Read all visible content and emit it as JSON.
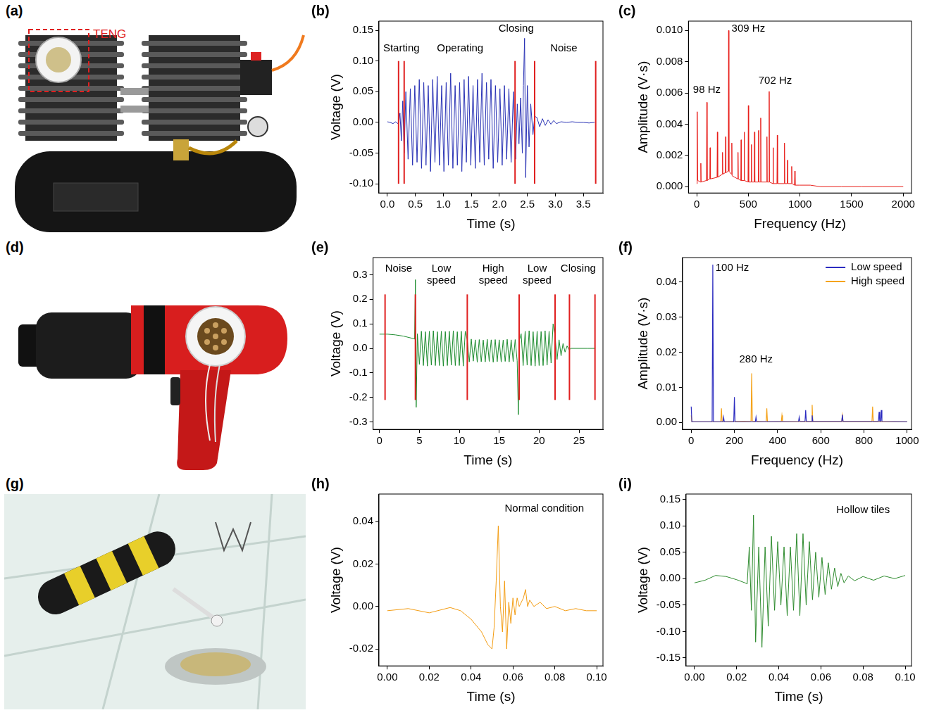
{
  "images": [
    {
      "label": "(a)",
      "annotation": "TENG"
    },
    {
      "label": "(d)"
    },
    {
      "label": "(g)"
    }
  ],
  "chart_data": [
    {
      "label": "(b)",
      "type": "line",
      "x_label": "Time (s)",
      "y_label": "Voltage (V)",
      "color": "#2a33b5",
      "grid": false,
      "xlim": [
        -0.15,
        3.85
      ],
      "xticks": [
        {
          "value": 0,
          "label": "0.0"
        },
        0.5,
        {
          "value": 1,
          "label": "1.0"
        },
        1.5,
        {
          "value": 2,
          "label": "2.0"
        },
        2.5,
        {
          "value": 3,
          "label": "3.0"
        },
        3.5
      ],
      "ylim": [
        -0.115,
        0.165
      ],
      "yticks": [
        {
          "value": -0.1,
          "label": "-0.10"
        },
        -0.05,
        {
          "value": 0,
          "label": "0.00"
        },
        0.05,
        {
          "value": 0.1,
          "label": "0.10"
        },
        0.15
      ],
      "x": [
        0,
        0.05,
        0.1,
        0.15,
        0.2,
        0.225,
        0.25,
        0.275,
        0.3,
        0.33,
        0.37,
        0.41,
        0.45,
        0.49,
        0.53,
        0.57,
        0.61,
        0.65,
        0.69,
        0.73,
        0.77,
        0.81,
        0.85,
        0.89,
        0.93,
        0.97,
        1.01,
        1.05,
        1.09,
        1.13,
        1.17,
        1.21,
        1.25,
        1.29,
        1.33,
        1.37,
        1.41,
        1.45,
        1.49,
        1.53,
        1.57,
        1.61,
        1.65,
        1.69,
        1.73,
        1.77,
        1.81,
        1.85,
        1.89,
        1.93,
        1.97,
        2.01,
        2.05,
        2.09,
        2.13,
        2.17,
        2.21,
        2.25,
        2.29,
        2.32,
        2.35,
        2.38,
        2.41,
        2.43,
        2.45,
        2.47,
        2.5,
        2.53,
        2.56,
        2.6,
        2.63,
        2.67,
        2.72,
        2.77,
        2.82,
        2.87,
        2.92,
        2.97,
        3.02,
        3.1,
        3.2,
        3.3,
        3.4,
        3.5,
        3.6,
        3.7
      ],
      "values": [
        0.001,
        0.0,
        -0.002,
        0.001,
        -0.003,
        0.015,
        -0.03,
        0.035,
        -0.05,
        0.05,
        -0.06,
        0.055,
        -0.07,
        0.06,
        -0.065,
        0.07,
        -0.075,
        0.065,
        -0.07,
        0.06,
        -0.08,
        0.07,
        -0.065,
        0.075,
        -0.07,
        0.06,
        -0.08,
        0.065,
        -0.07,
        0.08,
        -0.075,
        0.06,
        -0.07,
        0.065,
        -0.08,
        0.07,
        -0.065,
        0.075,
        -0.07,
        0.06,
        -0.075,
        0.07,
        -0.065,
        0.08,
        -0.07,
        0.065,
        -0.06,
        0.07,
        -0.075,
        0.06,
        -0.065,
        0.055,
        -0.07,
        0.06,
        -0.06,
        0.055,
        -0.065,
        0.05,
        -0.06,
        0.03,
        -0.035,
        0.04,
        -0.05,
        0.06,
        0.137,
        -0.09,
        0.06,
        -0.04,
        0.03,
        -0.02,
        0.01,
        0.008,
        -0.007,
        0.006,
        -0.005,
        0.004,
        -0.003,
        0.003,
        -0.002,
        0.001,
        0.0,
        0.001,
        0.0,
        0.0,
        -0.001,
        0.0
      ],
      "vlines": {
        "x": [
          0.2,
          0.3,
          2.28,
          2.63,
          3.72
        ],
        "ymin": -0.1,
        "ymax": 0.1,
        "color": "#e02020"
      },
      "annotations": [
        {
          "text": "Starting",
          "x": 0.25,
          "y": 0.12
        },
        {
          "text": "Operating",
          "x": 1.3,
          "y": 0.12
        },
        {
          "text": "Closing",
          "x": 2.3,
          "y": 0.152
        },
        {
          "text": "Noise",
          "x": 3.15,
          "y": 0.12
        }
      ]
    },
    {
      "label": "(c)",
      "type": "line",
      "x_label": "Frequency (Hz)",
      "y_label": "Amplitude (V·s)",
      "color": "#e8201c",
      "grid": false,
      "xlim": [
        -80,
        2080
      ],
      "xticks": [
        0,
        500,
        1000,
        1500,
        2000
      ],
      "ylim": [
        -0.0004,
        0.0106
      ],
      "yticks": [
        {
          "value": 0,
          "label": "0.000"
        },
        {
          "value": 0.002,
          "label": "0.002"
        },
        {
          "value": 0.004,
          "label": "0.004"
        },
        {
          "value": 0.006,
          "label": "0.006"
        },
        {
          "value": 0.008,
          "label": "0.008"
        },
        {
          "value": 0.01,
          "label": "0.010"
        }
      ],
      "x": [
        0,
        5,
        10,
        37,
        40,
        43,
        95,
        98,
        101,
        127,
        130,
        133,
        197,
        200,
        203,
        247,
        250,
        253,
        277,
        280,
        283,
        306,
        309,
        312,
        337,
        340,
        343,
        397,
        400,
        403,
        427,
        430,
        433,
        457,
        460,
        463,
        497,
        500,
        503,
        527,
        530,
        533,
        557,
        560,
        563,
        597,
        600,
        603,
        617,
        620,
        623,
        677,
        680,
        683,
        699,
        702,
        705,
        737,
        740,
        743,
        777,
        780,
        783,
        847,
        850,
        853,
        877,
        880,
        883,
        917,
        920,
        923,
        947,
        950,
        953,
        1000,
        1100,
        1200,
        1400,
        1600,
        1800,
        2000
      ],
      "values": [
        0.0002,
        0.0048,
        0.0004,
        0.0003,
        0.0015,
        0.0003,
        0.0004,
        0.0054,
        0.0004,
        0.0005,
        0.0025,
        0.0005,
        0.0006,
        0.0035,
        0.0006,
        0.0008,
        0.0022,
        0.0008,
        0.0009,
        0.0032,
        0.0009,
        0.001,
        0.01,
        0.001,
        0.0008,
        0.0028,
        0.0007,
        0.0005,
        0.0022,
        0.0005,
        0.0004,
        0.003,
        0.0004,
        0.0004,
        0.0035,
        0.0004,
        0.0003,
        0.0052,
        0.0003,
        0.0003,
        0.0027,
        0.0003,
        0.0003,
        0.0035,
        0.0003,
        0.0003,
        0.0036,
        0.0003,
        0.0003,
        0.0044,
        0.0003,
        0.0003,
        0.0032,
        0.0003,
        0.0003,
        0.0061,
        0.0003,
        0.0002,
        0.0025,
        0.0002,
        0.0002,
        0.0033,
        0.0002,
        0.0002,
        0.0028,
        0.0002,
        0.0002,
        0.0017,
        0.0002,
        0.0002,
        0.0013,
        0.0002,
        0.0001,
        0.001,
        0.0001,
        0.0001,
        0.0001,
        0.0,
        0.0,
        0.0,
        0.0,
        0.0
      ],
      "annotations": [
        {
          "text": "98 Hz",
          "x": 98,
          "y": 0.0062
        },
        {
          "text": "309 Hz",
          "x": 500,
          "y": 0.0101
        },
        {
          "text": "702 Hz",
          "x": 760,
          "y": 0.0068
        }
      ]
    },
    {
      "label": "(e)",
      "type": "line",
      "x_label": "Time (s)",
      "y_label": "Voltage (V)",
      "color": "#1d8c2e",
      "grid": false,
      "xlim": [
        -0.8,
        28
      ],
      "xticks": [
        0,
        5,
        10,
        15,
        20,
        25
      ],
      "ylim": [
        -0.33,
        0.37
      ],
      "yticks": [
        -0.3,
        -0.2,
        -0.1,
        {
          "value": 0,
          "label": "0.0"
        },
        0.1,
        0.2,
        0.3
      ],
      "x": [
        0,
        1,
        2,
        3,
        4,
        4.4,
        4.5,
        4.6,
        4.75,
        5,
        5.25,
        5.5,
        5.75,
        6,
        6.25,
        6.5,
        6.75,
        7,
        7.25,
        7.5,
        7.75,
        8,
        8.25,
        8.5,
        8.75,
        9,
        9.25,
        9.5,
        9.75,
        10,
        10.25,
        10.5,
        10.75,
        11,
        11.25,
        11.5,
        11.75,
        12,
        12.25,
        12.5,
        12.75,
        13,
        13.25,
        13.5,
        13.75,
        14,
        14.25,
        14.5,
        14.75,
        15,
        15.25,
        15.5,
        15.75,
        16,
        16.25,
        16.5,
        16.75,
        17,
        17.25,
        17.4,
        17.5,
        17.75,
        18,
        18.25,
        18.5,
        18.75,
        19,
        19.25,
        19.5,
        19.75,
        20,
        20.25,
        20.5,
        20.75,
        21,
        21.25,
        21.5,
        21.75,
        22,
        22.25,
        22.5,
        22.75,
        23,
        23.25,
        23.5,
        23.75,
        24,
        25,
        26,
        27
      ],
      "values": [
        0.058,
        0.058,
        0.055,
        0.05,
        0.042,
        0.038,
        0.28,
        -0.24,
        0.06,
        -0.065,
        0.07,
        -0.07,
        0.068,
        -0.072,
        0.07,
        -0.068,
        0.072,
        -0.07,
        0.068,
        -0.07,
        0.07,
        -0.072,
        0.069,
        -0.07,
        0.07,
        -0.068,
        0.072,
        -0.07,
        0.068,
        -0.07,
        0.07,
        -0.072,
        0.07,
        0.035,
        -0.055,
        0.038,
        -0.052,
        0.035,
        -0.056,
        0.036,
        -0.054,
        0.034,
        -0.055,
        0.037,
        -0.053,
        0.035,
        -0.056,
        0.036,
        -0.054,
        0.035,
        -0.055,
        0.034,
        -0.053,
        0.037,
        -0.055,
        0.035,
        -0.054,
        0.036,
        -0.05,
        -0.27,
        0.03,
        0.06,
        -0.07,
        0.07,
        -0.068,
        0.072,
        -0.07,
        0.068,
        -0.072,
        0.07,
        -0.07,
        0.069,
        -0.07,
        0.072,
        -0.068,
        0.07,
        -0.06,
        0.1,
        0.05,
        -0.045,
        0.035,
        -0.03,
        0.02,
        -0.015,
        0.01,
        -0.005,
        0.0,
        0.0,
        0.0,
        0.0
      ],
      "vlines": {
        "x": [
          0.7,
          4.5,
          11,
          17.5,
          22,
          23.8,
          27
        ],
        "ymin": -0.21,
        "ymax": 0.22,
        "color": "#e02020"
      },
      "annotations": [
        {
          "text": "Noise",
          "x": 2.4,
          "y": 0.325
        },
        {
          "text": "Low speed",
          "x": 7.75,
          "y": 0.325
        },
        {
          "text": "High speed",
          "x": 14.25,
          "y": 0.325
        },
        {
          "text": "Low speed",
          "x": 19.75,
          "y": 0.325
        },
        {
          "text": "Closing",
          "x": 24.9,
          "y": 0.325
        }
      ]
    },
    {
      "label": "(f)",
      "type": "line",
      "x_label": "Frequency (Hz)",
      "y_label": "Amplitude (V·s)",
      "grid": false,
      "legend": "upper right",
      "xlim": [
        -40,
        1020
      ],
      "xticks": [
        0,
        200,
        400,
        600,
        800,
        1000
      ],
      "ylim": [
        -0.002,
        0.047
      ],
      "yticks": [
        {
          "value": 0,
          "label": "0.00"
        },
        0.01,
        0.02,
        0.03,
        0.04
      ],
      "series": [
        {
          "name": "Low speed",
          "color": "#2c2cc0",
          "x": [
            0,
            3,
            97,
            100,
            103,
            147,
            150,
            153,
            197,
            200,
            203,
            297,
            300,
            303,
            497,
            500,
            503,
            527,
            530,
            533,
            557,
            560,
            563,
            697,
            700,
            703,
            867,
            870,
            873,
            877,
            880,
            883,
            1000
          ],
          "values": [
            0.0045,
            0.0002,
            0.0002,
            0.045,
            0.0002,
            0.0002,
            0.0015,
            0.0002,
            0.0002,
            0.0072,
            0.0002,
            0.0002,
            0.0015,
            0.0002,
            0.0003,
            0.0015,
            0.0003,
            0.0003,
            0.0035,
            0.0003,
            0.0003,
            0.002,
            0.0003,
            0.0003,
            0.0022,
            0.0003,
            0.0003,
            0.003,
            0.0003,
            0.0003,
            0.0035,
            0.0003,
            0.0002
          ]
        },
        {
          "name": "High speed",
          "color": "#f5a31a",
          "x": [
            0,
            3,
            137,
            140,
            143,
            277,
            280,
            283,
            347,
            350,
            353,
            417,
            420,
            423,
            557,
            560,
            563,
            697,
            700,
            703,
            837,
            840,
            843,
            1000
          ],
          "values": [
            0.002,
            0.0002,
            0.0002,
            0.004,
            0.0002,
            0.0004,
            0.014,
            0.0004,
            0.0002,
            0.004,
            0.0002,
            0.0002,
            0.002,
            0.0002,
            0.0002,
            0.005,
            0.0002,
            0.0002,
            0.002,
            0.0002,
            0.0002,
            0.0045,
            0.0002,
            0.0002
          ]
        }
      ],
      "annotations": [
        {
          "text": "100 Hz",
          "x": 190,
          "y": 0.044
        },
        {
          "text": "280 Hz",
          "x": 300,
          "y": 0.018
        }
      ]
    },
    {
      "label": "(h)",
      "type": "line",
      "x_label": "Time (s)",
      "y_label": "Voltage (V)",
      "color": "#f39c12",
      "grid": false,
      "xlim": [
        -0.004,
        0.103
      ],
      "xticks": [
        {
          "value": 0,
          "label": "0.00"
        },
        0.02,
        0.04,
        0.06,
        0.08,
        {
          "value": 0.1,
          "label": "0.10"
        }
      ],
      "ylim": [
        -0.028,
        0.053
      ],
      "yticks": [
        -0.02,
        {
          "value": 0,
          "label": "0.00"
        },
        0.02,
        0.04
      ],
      "x": [
        0,
        0.01,
        0.02,
        0.03,
        0.035,
        0.04,
        0.045,
        0.048,
        0.05,
        0.051,
        0.052,
        0.053,
        0.054,
        0.055,
        0.056,
        0.057,
        0.058,
        0.059,
        0.06,
        0.061,
        0.062,
        0.063,
        0.065,
        0.066,
        0.067,
        0.068,
        0.07,
        0.073,
        0.076,
        0.08,
        0.085,
        0.09,
        0.095,
        0.1
      ],
      "values": [
        -0.002,
        -0.001,
        -0.003,
        -0.0005,
        -0.002,
        -0.006,
        -0.012,
        -0.018,
        -0.02,
        -0.01,
        0.012,
        0.038,
        0.0,
        -0.012,
        0.012,
        -0.02,
        0.002,
        -0.008,
        0.004,
        -0.004,
        0.004,
        0.0,
        0.004,
        0.008,
        0.0,
        0.003,
        0.0,
        0.002,
        -0.001,
        0.0,
        -0.002,
        -0.001,
        -0.002,
        -0.002
      ],
      "annotations": [
        {
          "text": "Normal condition",
          "x": 0.075,
          "y": 0.046
        }
      ]
    },
    {
      "label": "(i)",
      "type": "line",
      "x_label": "Time (s)",
      "y_label": "Voltage (V)",
      "color": "#2e8b2e",
      "grid": false,
      "xlim": [
        -0.004,
        0.103
      ],
      "xticks": [
        {
          "value": 0,
          "label": "0.00"
        },
        0.02,
        0.04,
        0.06,
        0.08,
        {
          "value": 0.1,
          "label": "0.10"
        }
      ],
      "ylim": [
        -0.165,
        0.16
      ],
      "yticks": [
        -0.15,
        {
          "value": -0.1,
          "label": "-0.10"
        },
        -0.05,
        {
          "value": 0,
          "label": "0.00"
        },
        0.05,
        {
          "value": 0.1,
          "label": "0.10"
        },
        0.15
      ],
      "x": [
        0,
        0.005,
        0.01,
        0.015,
        0.02,
        0.024,
        0.025,
        0.026,
        0.027,
        0.028,
        0.029,
        0.0305,
        0.032,
        0.0335,
        0.035,
        0.0365,
        0.038,
        0.0395,
        0.041,
        0.0425,
        0.044,
        0.0455,
        0.047,
        0.0485,
        0.05,
        0.0515,
        0.053,
        0.0545,
        0.056,
        0.0575,
        0.059,
        0.0605,
        0.062,
        0.0635,
        0.065,
        0.0665,
        0.068,
        0.0695,
        0.071,
        0.073,
        0.076,
        0.08,
        0.085,
        0.09,
        0.095,
        0.1
      ],
      "values": [
        -0.008,
        -0.003,
        0.006,
        0.004,
        -0.002,
        -0.008,
        -0.01,
        0.06,
        -0.06,
        0.12,
        -0.12,
        0.06,
        -0.13,
        0.06,
        -0.09,
        0.08,
        -0.06,
        0.07,
        -0.05,
        0.06,
        -0.07,
        0.06,
        -0.06,
        0.085,
        -0.07,
        0.085,
        -0.05,
        0.07,
        -0.04,
        0.05,
        -0.035,
        0.04,
        -0.03,
        0.03,
        -0.02,
        0.02,
        -0.015,
        0.01,
        -0.008,
        0.005,
        -0.004,
        0.004,
        -0.003,
        0.005,
        0.0,
        0.006
      ],
      "annotations": [
        {
          "text": "Hollow tiles",
          "x": 0.08,
          "y": 0.13
        }
      ]
    }
  ]
}
